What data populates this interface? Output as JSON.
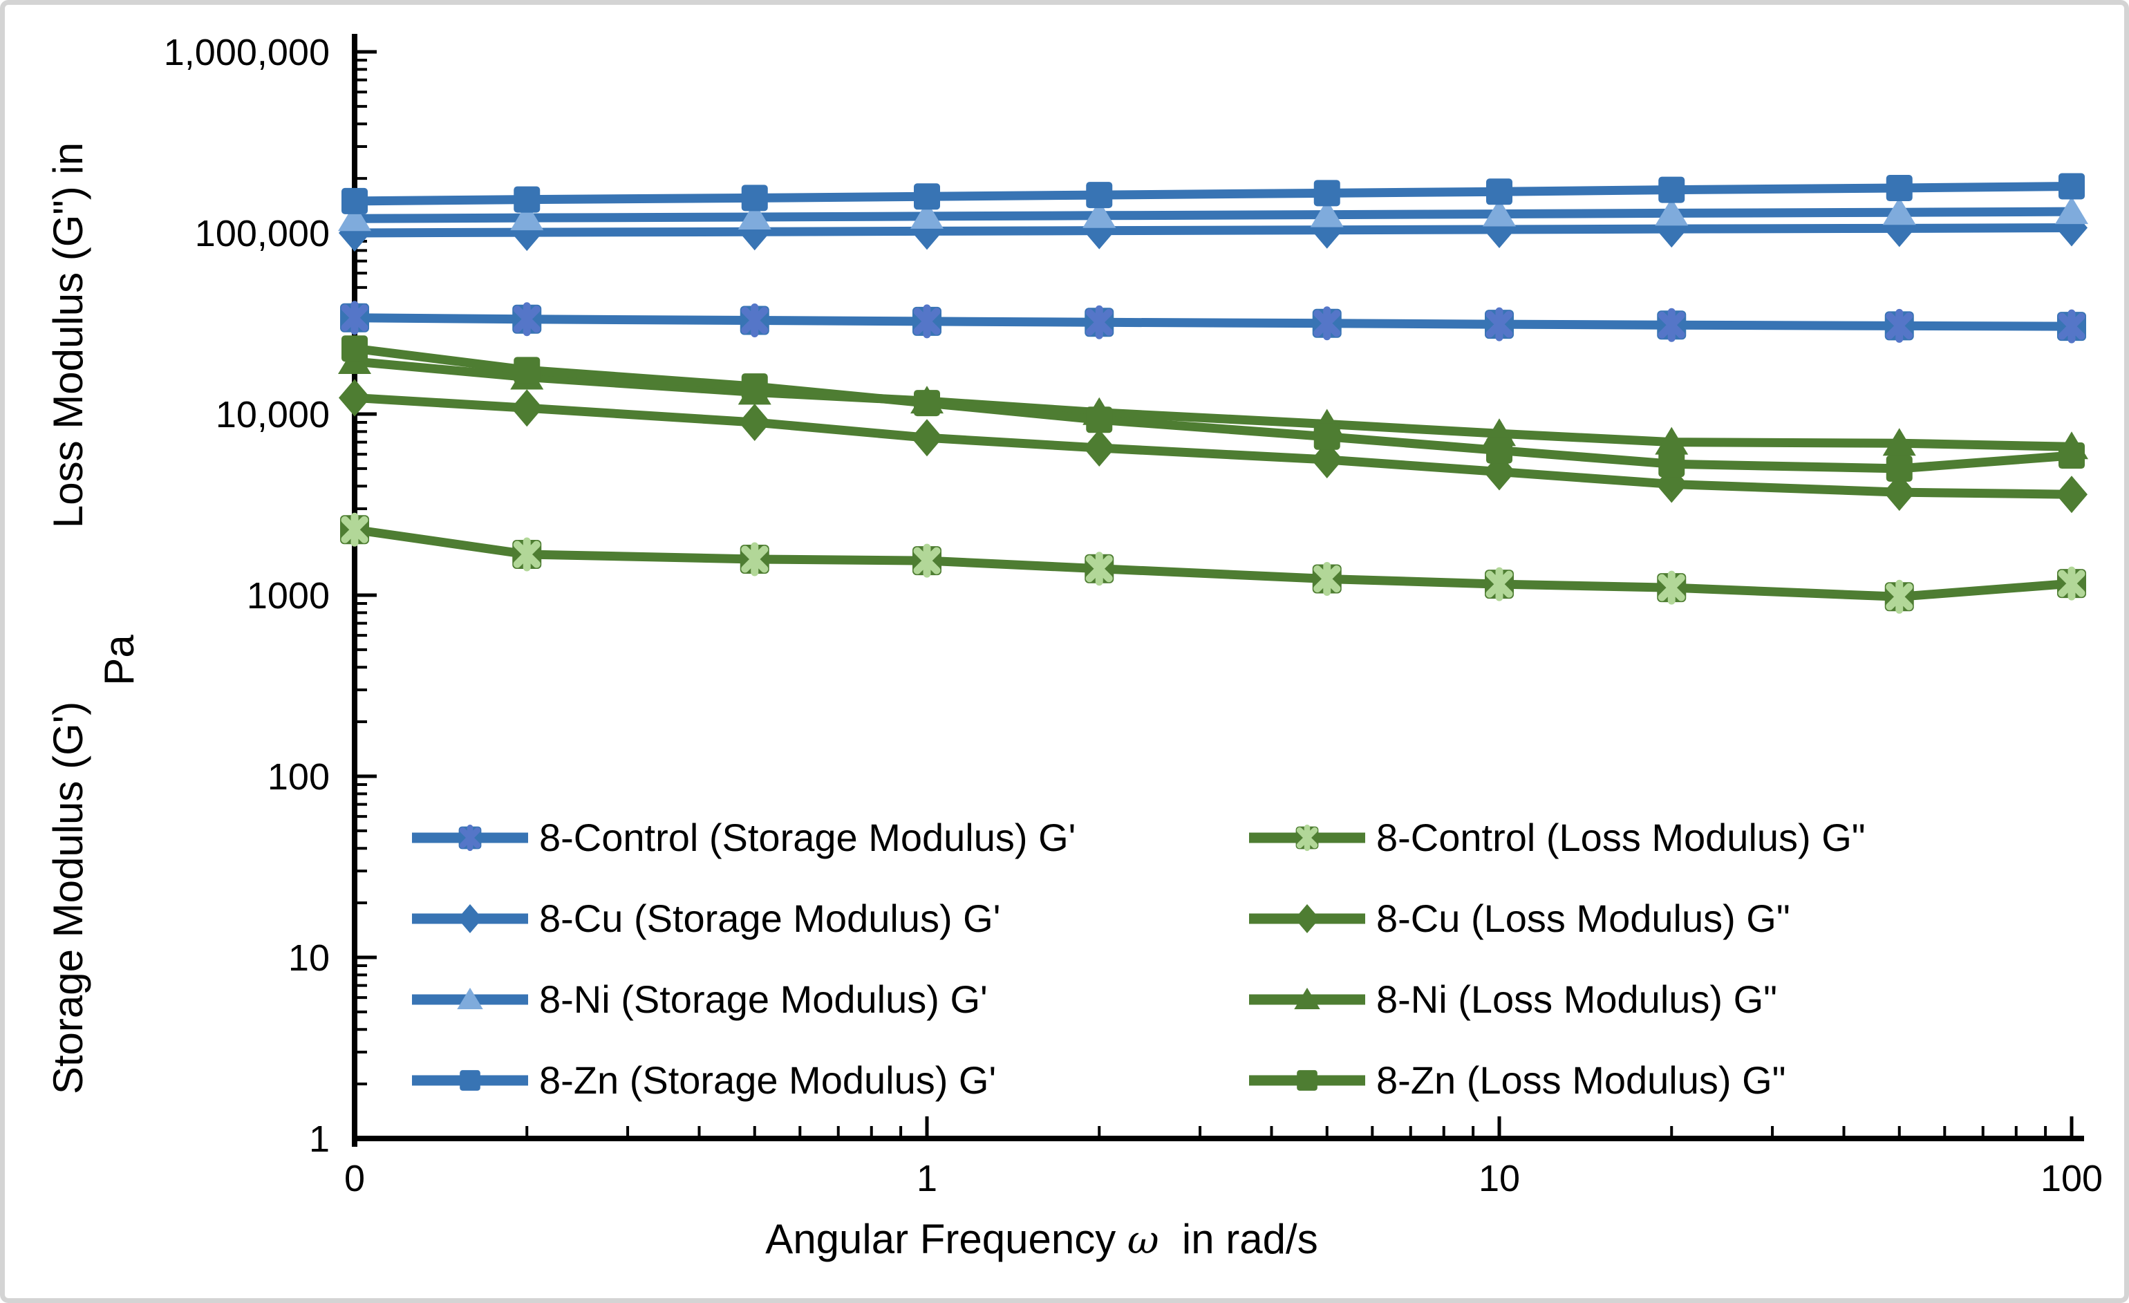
{
  "chart_data": {
    "type": "line",
    "title": "",
    "x_title": {
      "prefix": "Angular Frequency ",
      "omega": "ω",
      "suffix": "  in rad/s"
    },
    "y_title": {
      "upper": "Loss Modulus (G\") in",
      "unit": "Pa",
      "lower": "Storage Modulus (G')"
    },
    "x_scale": "log",
    "y_scale": "log",
    "xlim": [
      0.1,
      100
    ],
    "ylim": [
      1,
      1000000
    ],
    "grid": false,
    "x_ticks": [
      {
        "label": "0",
        "value": 0.1
      },
      {
        "label": "1",
        "value": 1
      },
      {
        "label": "10",
        "value": 10
      },
      {
        "label": "100",
        "value": 100
      }
    ],
    "y_ticks": [
      {
        "label": "1",
        "value": 1
      },
      {
        "label": "10",
        "value": 10
      },
      {
        "label": "100",
        "value": 100
      },
      {
        "label": "1000",
        "value": 1000
      },
      {
        "label": "10,000",
        "value": 10000
      },
      {
        "label": "100,000",
        "value": 100000
      },
      {
        "label": "1,000,000",
        "value": 1000000
      }
    ],
    "x": [
      0.1,
      0.2,
      0.5,
      1,
      2,
      5,
      10,
      20,
      50,
      100
    ],
    "series": [
      {
        "name": "8-Control (Storage Modulus) G'",
        "group": "storage",
        "marker": "star-square",
        "color": "#3874B4",
        "star_color": "#5576C8",
        "values": [
          34000,
          33400,
          32900,
          32500,
          32100,
          31700,
          31300,
          31000,
          30700,
          30500
        ]
      },
      {
        "name": "8-Cu (Storage Modulus) G'",
        "group": "storage",
        "marker": "diamond",
        "color": "#3874B4",
        "values": [
          100000,
          100800,
          101500,
          102300,
          103000,
          103800,
          104500,
          105300,
          106000,
          106800
        ]
      },
      {
        "name": "8-Ni (Storage Modulus) G'",
        "group": "storage",
        "marker": "triangle",
        "color": "#3874B4",
        "marker_fill": "#7FABDC",
        "values": [
          120000,
          121200,
          122400,
          123600,
          124800,
          126100,
          127300,
          128600,
          129900,
          131200
        ]
      },
      {
        "name": "8-Zn (Storage Modulus) G'",
        "group": "storage",
        "marker": "square",
        "color": "#3874B4",
        "values": [
          150000,
          153000,
          156000,
          159000,
          162000,
          166000,
          169000,
          173000,
          177000,
          181000
        ]
      },
      {
        "name": "8-Control (Loss Modulus) G\"",
        "group": "loss",
        "marker": "star-square",
        "color": "#4E7D32",
        "star_color": "#B2D798",
        "values": [
          2300,
          1680,
          1580,
          1550,
          1400,
          1230,
          1150,
          1100,
          980,
          1160
        ]
      },
      {
        "name": "8-Cu (Loss Modulus) G\"",
        "group": "loss",
        "marker": "diamond",
        "color": "#4E7D32",
        "values": [
          12300,
          10800,
          9000,
          7400,
          6500,
          5600,
          4800,
          4100,
          3700,
          3600
        ]
      },
      {
        "name": "8-Ni (Loss Modulus) G\"",
        "group": "loss",
        "marker": "triangle",
        "color": "#4E7D32",
        "marker_fill": "#4E7D32",
        "values": [
          19500,
          16000,
          13200,
          11800,
          10200,
          8800,
          7800,
          7000,
          6900,
          6600
        ]
      },
      {
        "name": "8-Zn (Loss Modulus) G\"",
        "group": "loss",
        "marker": "square",
        "color": "#4E7D32",
        "values": [
          23000,
          17500,
          14200,
          11500,
          9300,
          7500,
          6300,
          5300,
          5000,
          5900
        ]
      }
    ],
    "legend": {
      "position": "inside bottom-left, two columns",
      "left_column_series": [
        0,
        1,
        2,
        3
      ],
      "right_column_series": [
        4,
        5,
        6,
        7
      ]
    }
  }
}
